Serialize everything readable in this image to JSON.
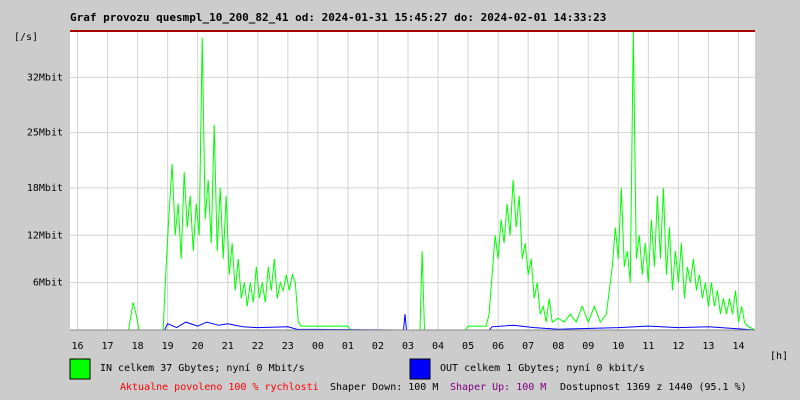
{
  "chart_data": {
    "type": "line",
    "title": "Graf provozu quesmpl_10_200_82_41 od: 2024-01-31 15:45:27 do: 2024-02-01 14:33:23",
    "y_unit": "[/s]",
    "x_unit": "[h]",
    "xlim": [
      -0.25,
      22.55
    ],
    "xticks": [
      {
        "value": 0,
        "label": "16"
      },
      {
        "value": 1,
        "label": "17"
      },
      {
        "value": 2,
        "label": "18"
      },
      {
        "value": 3,
        "label": "19"
      },
      {
        "value": 4,
        "label": "20"
      },
      {
        "value": 5,
        "label": "21"
      },
      {
        "value": 6,
        "label": "22"
      },
      {
        "value": 7,
        "label": "23"
      },
      {
        "value": 8,
        "label": "00"
      },
      {
        "value": 9,
        "label": "01"
      },
      {
        "value": 10,
        "label": "02"
      },
      {
        "value": 11,
        "label": "03"
      },
      {
        "value": 12,
        "label": "04"
      },
      {
        "value": 13,
        "label": "05"
      },
      {
        "value": 14,
        "label": "06"
      },
      {
        "value": 15,
        "label": "07"
      },
      {
        "value": 16,
        "label": "08"
      },
      {
        "value": 17,
        "label": "09"
      },
      {
        "value": 18,
        "label": "10"
      },
      {
        "value": 19,
        "label": "11"
      },
      {
        "value": 20,
        "label": "12"
      },
      {
        "value": 21,
        "label": "13"
      },
      {
        "value": 22,
        "label": "14"
      }
    ],
    "ylim": [
      0,
      38
    ],
    "yticks": [
      {
        "value": 6,
        "label": "6Mbit"
      },
      {
        "value": 12,
        "label": "12Mbit"
      },
      {
        "value": 18,
        "label": "18Mbit"
      },
      {
        "value": 25,
        "label": "25Mbit"
      },
      {
        "value": 32,
        "label": "32Mbit"
      }
    ],
    "grid": true,
    "series": [
      {
        "name": "IN celkem 37 Gbytes; nyní 0 Mbit/s",
        "color": "#00ff00",
        "x": [
          -0.25,
          1.7,
          1.85,
          1.95,
          2.05,
          2.85,
          2.95,
          3.05,
          3.15,
          3.25,
          3.35,
          3.45,
          3.55,
          3.65,
          3.75,
          3.85,
          3.95,
          4.05,
          4.15,
          4.25,
          4.35,
          4.45,
          4.55,
          4.65,
          4.75,
          4.85,
          4.95,
          5.05,
          5.15,
          5.25,
          5.35,
          5.45,
          5.55,
          5.65,
          5.75,
          5.85,
          5.95,
          6.05,
          6.15,
          6.25,
          6.35,
          6.45,
          6.55,
          6.65,
          6.75,
          6.85,
          6.95,
          7.05,
          7.15,
          7.25,
          7.35,
          7.45,
          9.0,
          9.1,
          11.4,
          11.47,
          11.55,
          12.9,
          13.0,
          13.6,
          13.7,
          13.8,
          13.9,
          14.0,
          14.1,
          14.2,
          14.3,
          14.4,
          14.5,
          14.6,
          14.7,
          14.8,
          14.9,
          15.0,
          15.1,
          15.2,
          15.3,
          15.4,
          15.5,
          15.6,
          15.7,
          15.8,
          16.0,
          16.2,
          16.4,
          16.6,
          16.8,
          17.0,
          17.2,
          17.4,
          17.6,
          17.8,
          17.9,
          18.0,
          18.1,
          18.2,
          18.3,
          18.4,
          18.5,
          18.6,
          18.7,
          18.8,
          18.9,
          19.0,
          19.1,
          19.2,
          19.3,
          19.4,
          19.5,
          19.6,
          19.7,
          19.8,
          19.9,
          20.0,
          20.1,
          20.2,
          20.3,
          20.4,
          20.5,
          20.6,
          20.7,
          20.8,
          20.9,
          21.0,
          21.1,
          21.2,
          21.3,
          21.4,
          21.5,
          21.6,
          21.7,
          21.8,
          21.9,
          22.0,
          22.1,
          22.2,
          22.3,
          22.55
        ],
        "values": [
          0,
          0,
          3.5,
          2,
          0,
          0,
          8,
          15,
          21,
          12,
          16,
          9,
          20,
          13,
          17,
          10,
          16,
          12,
          37,
          14,
          19,
          11,
          26,
          10,
          18,
          9,
          17,
          7,
          11,
          5,
          9,
          4,
          6,
          3,
          6,
          3.5,
          8,
          4,
          6,
          3.5,
          8,
          5,
          9,
          4,
          6,
          5,
          7,
          5,
          7,
          6,
          1,
          0.5,
          0.5,
          0,
          0,
          10,
          0,
          0,
          0.5,
          0.5,
          2,
          7,
          12,
          9,
          14,
          11,
          16,
          12,
          19,
          13,
          17,
          9,
          11,
          7,
          9,
          4,
          6,
          2,
          3,
          1,
          4,
          1,
          1.5,
          1,
          2,
          1,
          3,
          1,
          3,
          1,
          2,
          8,
          13,
          9,
          18,
          8,
          10,
          6,
          38,
          9,
          12,
          7,
          11,
          6,
          14,
          8,
          17,
          9,
          18,
          7,
          13,
          5,
          10,
          6,
          11,
          4,
          8,
          6,
          9,
          5,
          7,
          4,
          6,
          3,
          6,
          3,
          5,
          2,
          4,
          2,
          4,
          2,
          5,
          1,
          3,
          1,
          0.5,
          0
        ]
      },
      {
        "name": "OUT celkem 1 Gbytes; nyní 0 kbit/s",
        "color": "#0000ff",
        "x": [
          -0.25,
          2.9,
          3.0,
          3.3,
          3.6,
          4.0,
          4.3,
          4.7,
          5.0,
          5.5,
          6.0,
          7.0,
          7.3,
          10.85,
          10.9,
          10.95,
          13.7,
          13.8,
          14.5,
          15.2,
          16,
          18,
          19,
          20,
          21,
          22.2,
          22.55
        ],
        "values": [
          0,
          0,
          0.8,
          0.3,
          1,
          0.5,
          1,
          0.6,
          0.8,
          0.4,
          0.3,
          0.4,
          0.1,
          0,
          2,
          0,
          0,
          0.4,
          0.6,
          0.3,
          0.1,
          0.3,
          0.5,
          0.3,
          0.4,
          0.1,
          0
        ]
      }
    ],
    "footer": [
      {
        "text": "Aktualne povoleno 100 % rychlosti",
        "color": "#ff0000"
      },
      {
        "text": "Shaper Down: 100 M",
        "color": "#000000"
      },
      {
        "text": "Shaper Up: 100 M",
        "color": "#800080"
      },
      {
        "text": "Dostupnost 1369 z 1440 (95.1 %)",
        "color": "#000000"
      }
    ]
  }
}
